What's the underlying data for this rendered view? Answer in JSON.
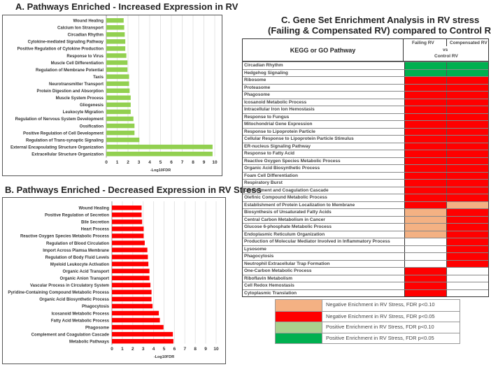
{
  "chart_data": [
    {
      "type": "bar",
      "orientation": "horizontal",
      "title": "A. Pathways Enriched - Increased Expression in RV",
      "xlabel": "-Log10FDR",
      "xlim": [
        0,
        10
      ],
      "xticks": [
        0,
        1,
        2,
        3,
        4,
        5,
        6,
        7,
        8,
        9,
        10
      ],
      "color": "#92d050",
      "categories": [
        "Wound Healing",
        "Calcium Ion Stransport",
        "Circadian Rhythm",
        "Cytokine-mediated Signaling Pathway",
        "Positive Regulation of Cytokine Production",
        "Response to Virus",
        "Muscle Cell Differentiation",
        "Regulation of Membrane Potential",
        "Taxis",
        "Neurotransmitter Transport",
        "Protein Digestion and Absorption",
        "Muscle System Process",
        "Gliogenesis",
        "Leukocyte Migration",
        "Regulation of Nervous System Development",
        "Ossification",
        "Positive Regulation of Cell Development",
        "Regulation of Trans-synaptic Signaling",
        "External Encapsulating Structure Organization",
        "Extracellular Structure Organization"
      ],
      "values": [
        1.6,
        1.65,
        1.7,
        1.75,
        1.75,
        1.85,
        1.95,
        1.95,
        2.1,
        2.1,
        2.15,
        2.25,
        2.25,
        2.25,
        2.5,
        2.6,
        2.6,
        3.05,
        9.8,
        9.8
      ]
    },
    {
      "type": "bar",
      "orientation": "horizontal",
      "title": "B. Pathways Enriched - Decreased Expression in RV Stress",
      "xlabel": "-Log10FDR",
      "xlim": [
        0,
        10
      ],
      "xticks": [
        0,
        1,
        2,
        3,
        4,
        5,
        6,
        7,
        8,
        9,
        10
      ],
      "color": "#ff0000",
      "categories": [
        "Wound Healing",
        "Positive Regulation of Secretion",
        "Bile Secretion",
        "Heart Process",
        "Reactive Oxygen Species Metabolic Process",
        "Regulation of Blood Circulation",
        "Import Across Plamsa Membrane",
        "Regulation of Body Fluid Levels",
        "Myeloid Leukocyte Activation",
        "Organic Acid Transport",
        "Organic Anion Transport",
        "Vascular Process in Circulatory System",
        "Pyridine-Containing Compound Metabolic Process",
        "Organic Acid Biosynthetic Process",
        "Phagocytosis",
        "Icosanoid Metabolic Process",
        "Fatty Acid Metabolic Process",
        "Phagosome",
        "Complement and Coagulation Cascade",
        "Metabolic Pathways"
      ],
      "values": [
        2.85,
        2.85,
        2.9,
        3.05,
        3.05,
        3.15,
        3.4,
        3.45,
        3.5,
        3.6,
        3.6,
        3.7,
        3.8,
        3.8,
        3.9,
        4.5,
        4.6,
        4.95,
        5.85,
        5.9
      ]
    },
    {
      "type": "table",
      "title_line1": "C. Gene Set Enrichment Analysis in RV stress",
      "title_line2": "(Failing & Compensated RV) compared to Control RV",
      "header": {
        "pathway": "KEGG or GO Pathway",
        "col1": "Failing RV",
        "col2": "Compensated RV",
        "vs": "vs",
        "control": "Control RV"
      },
      "colors": {
        "R": "#ff0000",
        "N": "#f4b183",
        "L": "#a9d18e",
        "G": "#00b050",
        "": "#ffffff"
      },
      "rows": [
        [
          "Circadian Rhythm",
          "G",
          "G"
        ],
        [
          "Hedgehog Signaling",
          "G",
          "G"
        ],
        [
          "Ribosome",
          "R",
          "R"
        ],
        [
          "Proteasome",
          "R",
          "R"
        ],
        [
          "Phagosome",
          "R",
          "R"
        ],
        [
          "Icosanoid Metabolic Process",
          "R",
          "R"
        ],
        [
          "Intracellular Iron Ion Hemostasis",
          "R",
          "R"
        ],
        [
          "Response to Fungus",
          "R",
          "R"
        ],
        [
          "Mitochondrial Gene Expression",
          "R",
          "R"
        ],
        [
          "Response to Lipoprotein Particle",
          "R",
          "R"
        ],
        [
          "Cellular Response to Lipoprotein Particle Stimulus",
          "R",
          "R"
        ],
        [
          "ER-nucleus Signaling Pathway",
          "R",
          "R"
        ],
        [
          "Response to Fatty Acid",
          "R",
          "R"
        ],
        [
          "Reactive Oxygen Species Metabolic Process",
          "R",
          "R"
        ],
        [
          "Organic Acid Biosynthetic Process",
          "R",
          "R"
        ],
        [
          "Foam Cell Differentiation",
          "R",
          "R"
        ],
        [
          "Respiratory Burst",
          "R",
          "R"
        ],
        [
          "Complement and Coagulation Cascade",
          "R",
          "R"
        ],
        [
          "Olefinic Compound Metabolic Process",
          "R",
          "R"
        ],
        [
          "Establishment of Protein Localization to Membrane",
          "R",
          "N"
        ],
        [
          "Biosynthesis of Unsaturated Fatty Acids",
          "N",
          "R"
        ],
        [
          "Central Carbon Metabolism in Cancer",
          "N",
          "R"
        ],
        [
          "Glucose 6-phosphate Metabolic Process",
          "N",
          "R"
        ],
        [
          "Endoplasmic Reticulum Organization",
          "N",
          "R"
        ],
        [
          "Production of Molecular Mediator Involved in Inflammatory Process",
          "",
          "R"
        ],
        [
          "Lysosome",
          "",
          "R"
        ],
        [
          "Phagocytosis",
          "",
          "R"
        ],
        [
          "Neutrophil Extracellular Trap Formation",
          "",
          "R"
        ],
        [
          "One-Carbon Metabolic Process",
          "R",
          ""
        ],
        [
          "Riboflavin Metabolism",
          "R",
          ""
        ],
        [
          "Cell Redox Hemostasis",
          "R",
          ""
        ],
        [
          "Cytoplasmic Translation",
          "R",
          ""
        ]
      ],
      "legend": [
        {
          "code": "N",
          "label": "Negative Enichment in RV Stress, FDR p<0.10"
        },
        {
          "code": "R",
          "label": "Negative Enichment in RV Stress, FDR p<0.05"
        },
        {
          "code": "L",
          "label": "Positive Enrichment in RV Stress, FDR p<0.10"
        },
        {
          "code": "G",
          "label": "Positive Enrichment in RV Stress, FDR p<0.05"
        }
      ]
    }
  ]
}
